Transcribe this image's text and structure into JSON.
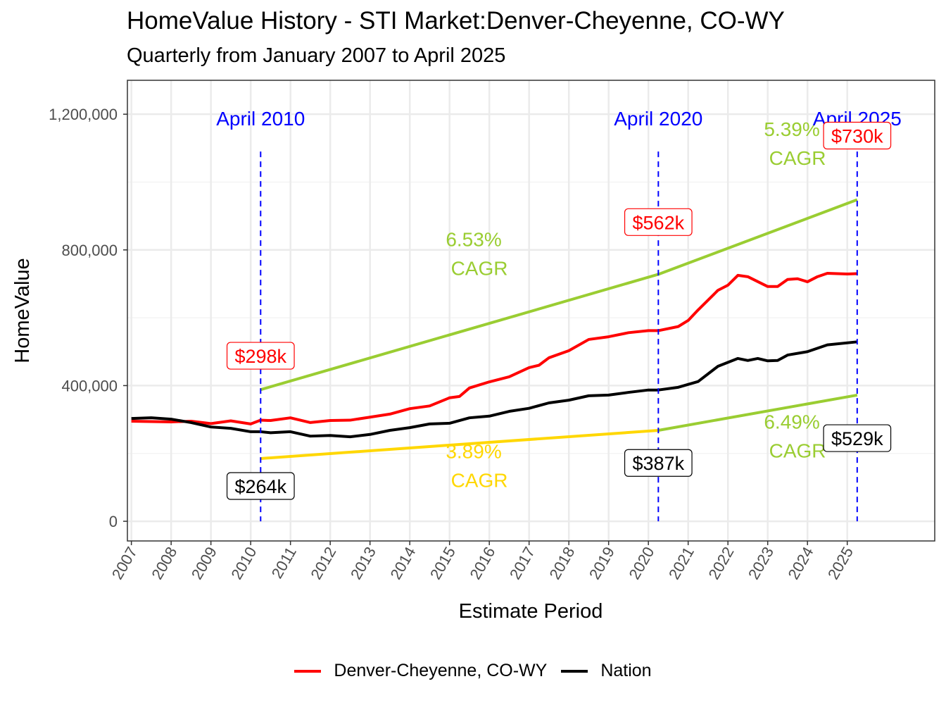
{
  "title": "HomeValue History - STI Market:Denver-Cheyenne, CO-WY",
  "subtitle": "Quarterly from January 2007 to April 2025",
  "chart_data": {
    "type": "line",
    "xlabel": "Estimate Period",
    "ylabel": "HomeValue",
    "xlim": [
      2006.9,
      2027.2
    ],
    "ylim": [
      -58000,
      1300000
    ],
    "x_ticks": [
      "2007",
      "2008",
      "2009",
      "2010",
      "2011",
      "2012",
      "2013",
      "2014",
      "2015",
      "2016",
      "2017",
      "2018",
      "2019",
      "2020",
      "2021",
      "2022",
      "2023",
      "2024",
      "2025"
    ],
    "y_ticks": [
      {
        "value": 0,
        "label": "0"
      },
      {
        "value": 400000,
        "label": "400,000"
      },
      {
        "value": 800000,
        "label": "800,000"
      },
      {
        "value": 1200000,
        "label": "1,200,000"
      }
    ],
    "grid": true,
    "legend_position": "bottom",
    "series": [
      {
        "name": "Denver-Cheyenne, CO-WY",
        "color": "#FF0000",
        "points": [
          [
            2007,
            295000
          ],
          [
            2007.5,
            294000
          ],
          [
            2008,
            293000
          ],
          [
            2008.5,
            295000
          ],
          [
            2009,
            288000
          ],
          [
            2009.5,
            296000
          ],
          [
            2010,
            287000
          ],
          [
            2010.25,
            298000
          ],
          [
            2010.5,
            297000
          ],
          [
            2011,
            305000
          ],
          [
            2011.5,
            291000
          ],
          [
            2012,
            297000
          ],
          [
            2012.5,
            298000
          ],
          [
            2013,
            307000
          ],
          [
            2013.5,
            316000
          ],
          [
            2014,
            332000
          ],
          [
            2014.5,
            340000
          ],
          [
            2015,
            364000
          ],
          [
            2015.25,
            368000
          ],
          [
            2015.5,
            393000
          ],
          [
            2016,
            411000
          ],
          [
            2016.5,
            426000
          ],
          [
            2017,
            453000
          ],
          [
            2017.25,
            460000
          ],
          [
            2017.5,
            482000
          ],
          [
            2018,
            503000
          ],
          [
            2018.5,
            536000
          ],
          [
            2019,
            544000
          ],
          [
            2019.5,
            556000
          ],
          [
            2020,
            562000
          ],
          [
            2020.25,
            562000
          ],
          [
            2020.75,
            574000
          ],
          [
            2021,
            592000
          ],
          [
            2021.25,
            623000
          ],
          [
            2021.75,
            681000
          ],
          [
            2022,
            696000
          ],
          [
            2022.25,
            725000
          ],
          [
            2022.5,
            721000
          ],
          [
            2023,
            692000
          ],
          [
            2023.25,
            692000
          ],
          [
            2023.5,
            713000
          ],
          [
            2023.75,
            715000
          ],
          [
            2024,
            706000
          ],
          [
            2024.25,
            721000
          ],
          [
            2024.5,
            731000
          ],
          [
            2025,
            729000
          ],
          [
            2025.25,
            730000
          ]
        ]
      },
      {
        "name": "Nation",
        "color": "#000000",
        "points": [
          [
            2007,
            303000
          ],
          [
            2007.5,
            305000
          ],
          [
            2008,
            301000
          ],
          [
            2008.5,
            291000
          ],
          [
            2009,
            278000
          ],
          [
            2009.5,
            274000
          ],
          [
            2010,
            264000
          ],
          [
            2010.25,
            264000
          ],
          [
            2010.5,
            261000
          ],
          [
            2011,
            264000
          ],
          [
            2011.5,
            251000
          ],
          [
            2012,
            253000
          ],
          [
            2012.5,
            249000
          ],
          [
            2013,
            256000
          ],
          [
            2013.5,
            268000
          ],
          [
            2014,
            276000
          ],
          [
            2014.5,
            287000
          ],
          [
            2015,
            289000
          ],
          [
            2015.5,
            305000
          ],
          [
            2016,
            310000
          ],
          [
            2016.5,
            324000
          ],
          [
            2017,
            333000
          ],
          [
            2017.5,
            349000
          ],
          [
            2018,
            357000
          ],
          [
            2018.5,
            370000
          ],
          [
            2019,
            372000
          ],
          [
            2019.5,
            380000
          ],
          [
            2020,
            387000
          ],
          [
            2020.25,
            387000
          ],
          [
            2020.75,
            395000
          ],
          [
            2021.25,
            412000
          ],
          [
            2021.75,
            457000
          ],
          [
            2022.25,
            480000
          ],
          [
            2022.5,
            474000
          ],
          [
            2022.75,
            480000
          ],
          [
            2023,
            473000
          ],
          [
            2023.25,
            474000
          ],
          [
            2023.5,
            490000
          ],
          [
            2024,
            500000
          ],
          [
            2024.5,
            520000
          ],
          [
            2025.25,
            529000
          ]
        ]
      }
    ],
    "cagr_lines": [
      {
        "color": "#9ACD32",
        "points": [
          [
            2010.25,
            388000
          ],
          [
            2020.25,
            728000
          ]
        ],
        "label": "6.53%\n CAGR",
        "label_pos": [
          2015.75,
          765000
        ]
      },
      {
        "color": "#9ACD32",
        "points": [
          [
            2020.25,
            728000
          ],
          [
            2025.25,
            948000
          ]
        ],
        "label": "5.39%\n CAGR",
        "label_pos": [
          2023.75,
          1090000
        ]
      },
      {
        "color": "#FFD700",
        "points": [
          [
            2010.25,
            185000
          ],
          [
            2020.25,
            268000
          ]
        ],
        "label": "3.89%\n CAGR",
        "label_pos": [
          2015.75,
          140000
        ]
      },
      {
        "color": "#9ACD32",
        "points": [
          [
            2020.25,
            268000
          ],
          [
            2025.25,
            372000
          ]
        ],
        "label": "6.49%\n CAGR",
        "label_pos": [
          2023.75,
          228000
        ]
      }
    ],
    "reference_lines": [
      {
        "x": 2010.25,
        "label": "April 2010",
        "color": "#0000FF"
      },
      {
        "x": 2020.25,
        "label": "April 2020",
        "color": "#0000FF"
      },
      {
        "x": 2025.25,
        "label": "April 2025",
        "color": "#0000FF"
      }
    ],
    "value_labels": [
      {
        "x": 2010.25,
        "y": 488000,
        "text": "$298k",
        "color": "#FF0000"
      },
      {
        "x": 2010.25,
        "y": 104000,
        "text": "$264k",
        "color": "#000000"
      },
      {
        "x": 2020.25,
        "y": 882000,
        "text": "$562k",
        "color": "#FF0000"
      },
      {
        "x": 2020.25,
        "y": 172000,
        "text": "$387k",
        "color": "#000000"
      },
      {
        "x": 2025.25,
        "y": 1137000,
        "text": "$730k",
        "color": "#FF0000"
      },
      {
        "x": 2025.25,
        "y": 245000,
        "text": "$529k",
        "color": "#000000"
      }
    ]
  }
}
